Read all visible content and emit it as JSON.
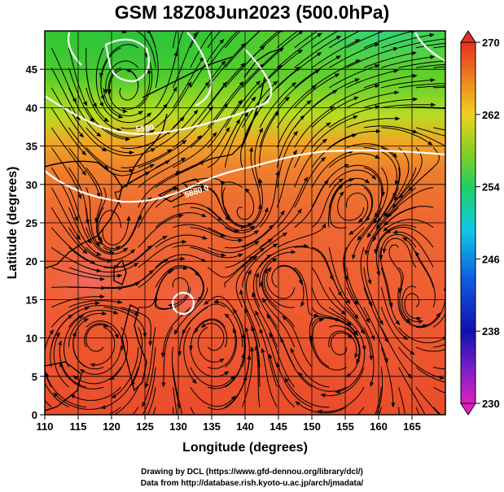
{
  "title": "GSM 18Z08Jun2023 (500.0hPa)",
  "axes": {
    "xlabel": "Longitude (degrees)",
    "ylabel": "Latitude  (degrees)",
    "xticks": [
      "110",
      "115",
      "120",
      "125",
      "130",
      "135",
      "140",
      "145",
      "150",
      "155",
      "160",
      "165"
    ],
    "yticks": [
      "0",
      "5",
      "10",
      "15",
      "20",
      "25",
      "30",
      "35",
      "40",
      "45"
    ]
  },
  "colorbar": {
    "labels": [
      "270",
      "262",
      "254",
      "246",
      "238",
      "230"
    ],
    "min": 230,
    "max": 270
  },
  "contours": {
    "label_5580": "5580",
    "label_5880": "5880.0"
  },
  "credits": {
    "line1": "Drawing by DCL (https://www.gfd-dennou.org/library/dcl/)",
    "line2": "Data from http://database.rish.kyoto-u.ac.jp/arch/jmadata/"
  }
}
